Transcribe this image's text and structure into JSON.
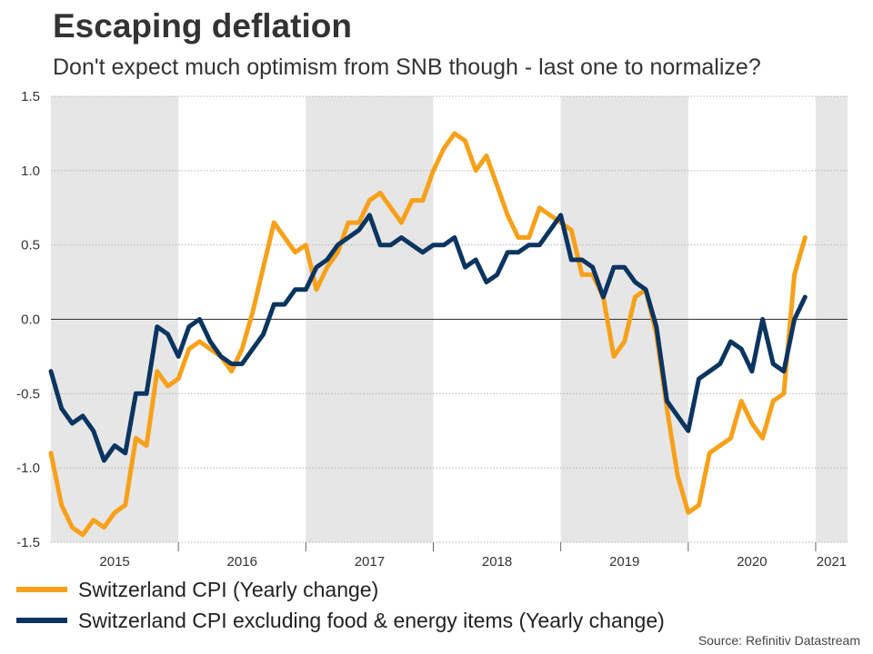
{
  "header": {
    "title": "Escaping deflation",
    "subtitle": "Don't expect much optimism from SNB though - last one to normalize?"
  },
  "source": "Source: Refinitiv Datastream",
  "colors": {
    "cpi": "#F7A11A",
    "core": "#0B3560",
    "shade": "#E6E6E6",
    "grid": "#B3B3B3",
    "zero_line": "#333333"
  },
  "chart_data": {
    "type": "line",
    "title": "Escaping deflation",
    "xlabel": "",
    "ylabel": "",
    "ylim": [
      -1.5,
      1.5
    ],
    "yticks": [
      1.5,
      1.0,
      0.5,
      0.0,
      -0.5,
      -1.0,
      -1.5
    ],
    "ytick_labels": [
      "1.5",
      "1.0",
      "0.5",
      "0.0",
      "-0.5",
      "-1.0",
      "-1.5"
    ],
    "x_start": "2015-01",
    "x_end": "2021-04",
    "year_labels": [
      "2015",
      "2016",
      "2017",
      "2018",
      "2019",
      "2020",
      "2021"
    ],
    "shaded_years": [
      "2015",
      "2017",
      "2019",
      "2021"
    ],
    "grid": true,
    "legend_position": "bottom-left",
    "series": [
      {
        "name": "Switzerland CPI (Yearly change)",
        "color_key": "cpi",
        "values": [
          -0.9,
          -1.25,
          -1.4,
          -1.45,
          -1.35,
          -1.4,
          -1.3,
          -1.25,
          -0.8,
          -0.85,
          -0.35,
          -0.45,
          -0.4,
          -0.2,
          -0.15,
          -0.2,
          -0.25,
          -0.35,
          -0.2,
          0.05,
          0.35,
          0.65,
          0.55,
          0.45,
          0.5,
          0.2,
          0.35,
          0.45,
          0.65,
          0.65,
          0.8,
          0.85,
          0.75,
          0.65,
          0.8,
          0.8,
          1.0,
          1.15,
          1.25,
          1.2,
          1.0,
          1.1,
          0.9,
          0.7,
          0.55,
          0.55,
          0.75,
          0.7,
          0.65,
          0.6,
          0.3,
          0.3,
          0.15,
          -0.25,
          -0.15,
          0.15,
          0.2,
          -0.1,
          -0.6,
          -1.05,
          -1.3,
          -1.25,
          -0.9,
          -0.85,
          -0.8,
          -0.55,
          -0.7,
          -0.8,
          -0.55,
          -0.5,
          0.3,
          0.55
        ]
      },
      {
        "name": "Switzerland CPI excluding food & energy items (Yearly change)",
        "color_key": "core",
        "values": [
          -0.35,
          -0.6,
          -0.7,
          -0.65,
          -0.75,
          -0.95,
          -0.85,
          -0.9,
          -0.5,
          -0.5,
          -0.05,
          -0.1,
          -0.25,
          -0.05,
          0.0,
          -0.15,
          -0.25,
          -0.3,
          -0.3,
          -0.2,
          -0.1,
          0.1,
          0.1,
          0.2,
          0.2,
          0.35,
          0.4,
          0.5,
          0.55,
          0.6,
          0.7,
          0.5,
          0.5,
          0.55,
          0.5,
          0.45,
          0.5,
          0.5,
          0.55,
          0.35,
          0.4,
          0.25,
          0.3,
          0.45,
          0.45,
          0.5,
          0.5,
          0.6,
          0.7,
          0.4,
          0.4,
          0.35,
          0.15,
          0.35,
          0.35,
          0.25,
          0.2,
          -0.05,
          -0.55,
          -0.65,
          -0.75,
          -0.4,
          -0.35,
          -0.3,
          -0.15,
          -0.2,
          -0.35,
          0.0,
          -0.3,
          -0.35,
          0.0,
          0.15
        ]
      }
    ]
  }
}
